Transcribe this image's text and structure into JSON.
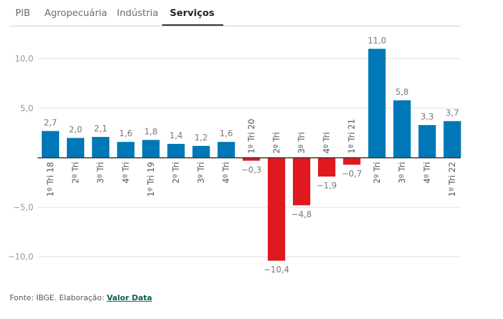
{
  "tabs": [
    {
      "label": "PIB",
      "active": false
    },
    {
      "label": "Agropecuária",
      "active": false
    },
    {
      "label": "Indústria",
      "active": false
    },
    {
      "label": "Serviços",
      "active": true
    }
  ],
  "footer": {
    "source_text": "Fonte: IBGE. Elaboração: ",
    "link_text": "Valor Data"
  },
  "colors": {
    "positive": "#0077b6",
    "negative": "#e0191e",
    "grid": "#e2e2e2",
    "axis": "#333333",
    "label": "#777777"
  },
  "chart_data": {
    "type": "bar",
    "title": "",
    "xlabel": "",
    "ylabel": "",
    "ylim": [
      -12,
      12
    ],
    "yticks": [
      10,
      5,
      -5,
      -10
    ],
    "ytick_labels": [
      "10,0",
      "5,0",
      "−5,0",
      "−10,0"
    ],
    "grid": true,
    "categories": [
      "1º Tri 18",
      "2º Tri",
      "3º Tri",
      "4º Tri",
      "1º Tri 19",
      "2º Tri",
      "3º Tri",
      "4º Tri",
      "1º Tri 20",
      "2º Tri",
      "3º Tri",
      "4º Tri",
      "1º Tri 21",
      "2º Tri",
      "3º Tri",
      "4º Tri",
      "1º Tri 22"
    ],
    "values": [
      2.7,
      2.0,
      2.1,
      1.6,
      1.8,
      1.4,
      1.2,
      1.6,
      -0.3,
      -10.4,
      -4.8,
      -1.9,
      -0.7,
      11.0,
      5.8,
      3.3,
      3.7
    ],
    "value_labels": [
      "2,7",
      "2,0",
      "2,1",
      "1,6",
      "1,8",
      "1,4",
      "1,2",
      "1,6",
      "−0,3",
      "−10,4",
      "−4,8",
      "−1,9",
      "−0,7",
      "11,0",
      "5,8",
      "3,3",
      "3,7"
    ]
  }
}
